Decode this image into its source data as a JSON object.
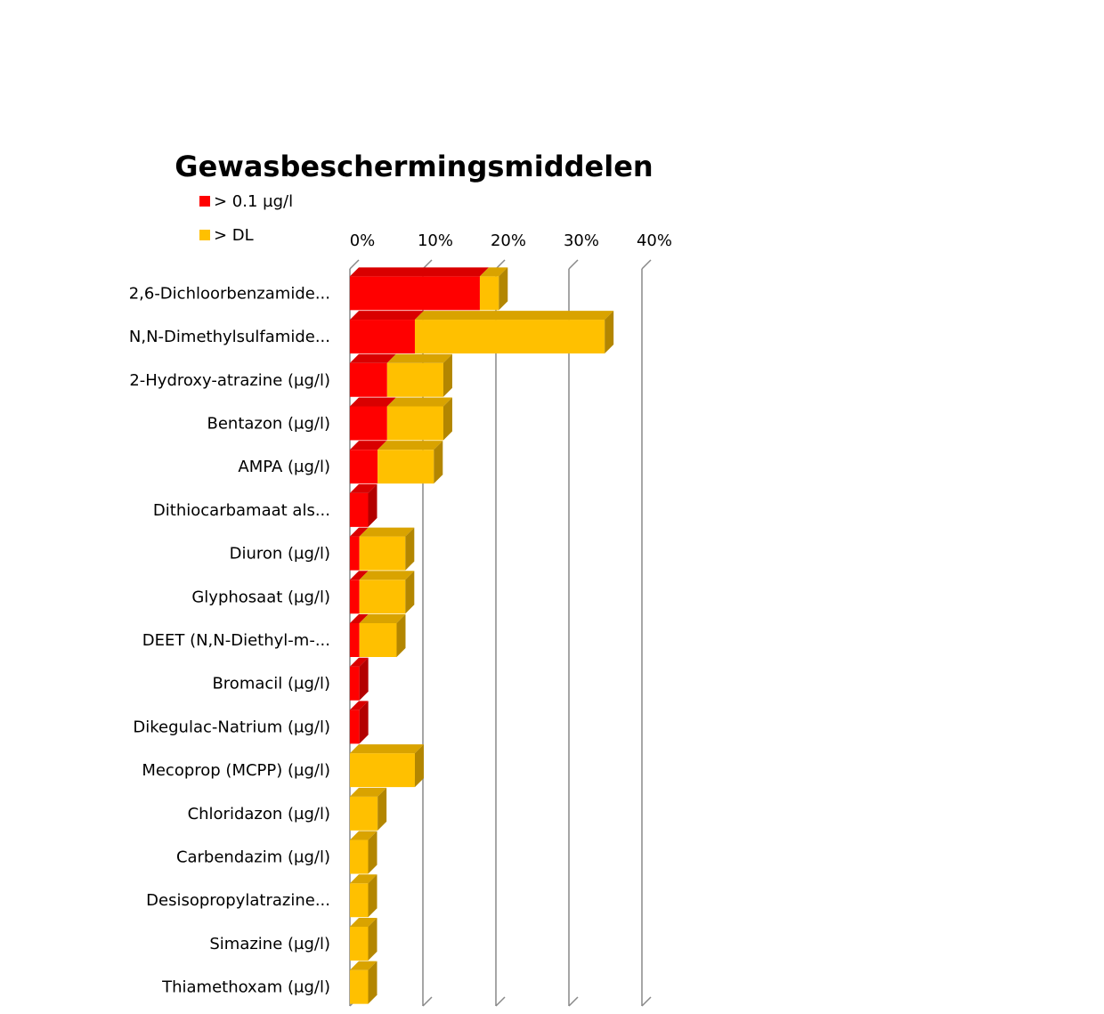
{
  "chart_data": {
    "type": "bar",
    "orientation": "horizontal",
    "stacked": true,
    "title": "Gewasbeschermingsmiddelen",
    "xlabel": "",
    "ylabel": "",
    "xlim": [
      0,
      40
    ],
    "x_ticks": [
      "0%",
      "10%",
      "20%",
      "30%",
      "40%"
    ],
    "grid": true,
    "legend_position": "top-left",
    "categories": [
      "2,6-Dichloorbenzamide...",
      "N,N-Dimethylsulfamide...",
      "2-Hydroxy-atrazine (µg/l)",
      "Bentazon (µg/l)",
      "AMPA (µg/l)",
      "Dithiocarbamaat als...",
      "Diuron (µg/l)",
      "Glyphosaat (µg/l)",
      "DEET (N,N-Diethyl-m-...",
      "Bromacil (µg/l)",
      "Dikegulac-Natrium (µg/l)",
      "Mecoprop (MCPP) (µg/l)",
      "Chloridazon (µg/l)",
      "Carbendazim (µg/l)",
      "Desisopropylatrazine...",
      "Simazine (µg/l)",
      "Thiamethoxam (µg/l)"
    ],
    "series": [
      {
        "name": "> 0.1 µg/l",
        "color": "#ff0000",
        "values": [
          17.8,
          8.9,
          5.1,
          5.1,
          3.8,
          2.5,
          1.3,
          1.3,
          1.3,
          1.3,
          1.3,
          0,
          0,
          0,
          0,
          0,
          0
        ]
      },
      {
        "name": "> DL",
        "color": "#ffc000",
        "values": [
          2.6,
          26.0,
          7.7,
          7.7,
          7.7,
          0,
          6.3,
          6.3,
          5.1,
          0,
          0,
          8.9,
          3.8,
          2.5,
          2.5,
          2.5,
          2.5
        ]
      }
    ]
  }
}
